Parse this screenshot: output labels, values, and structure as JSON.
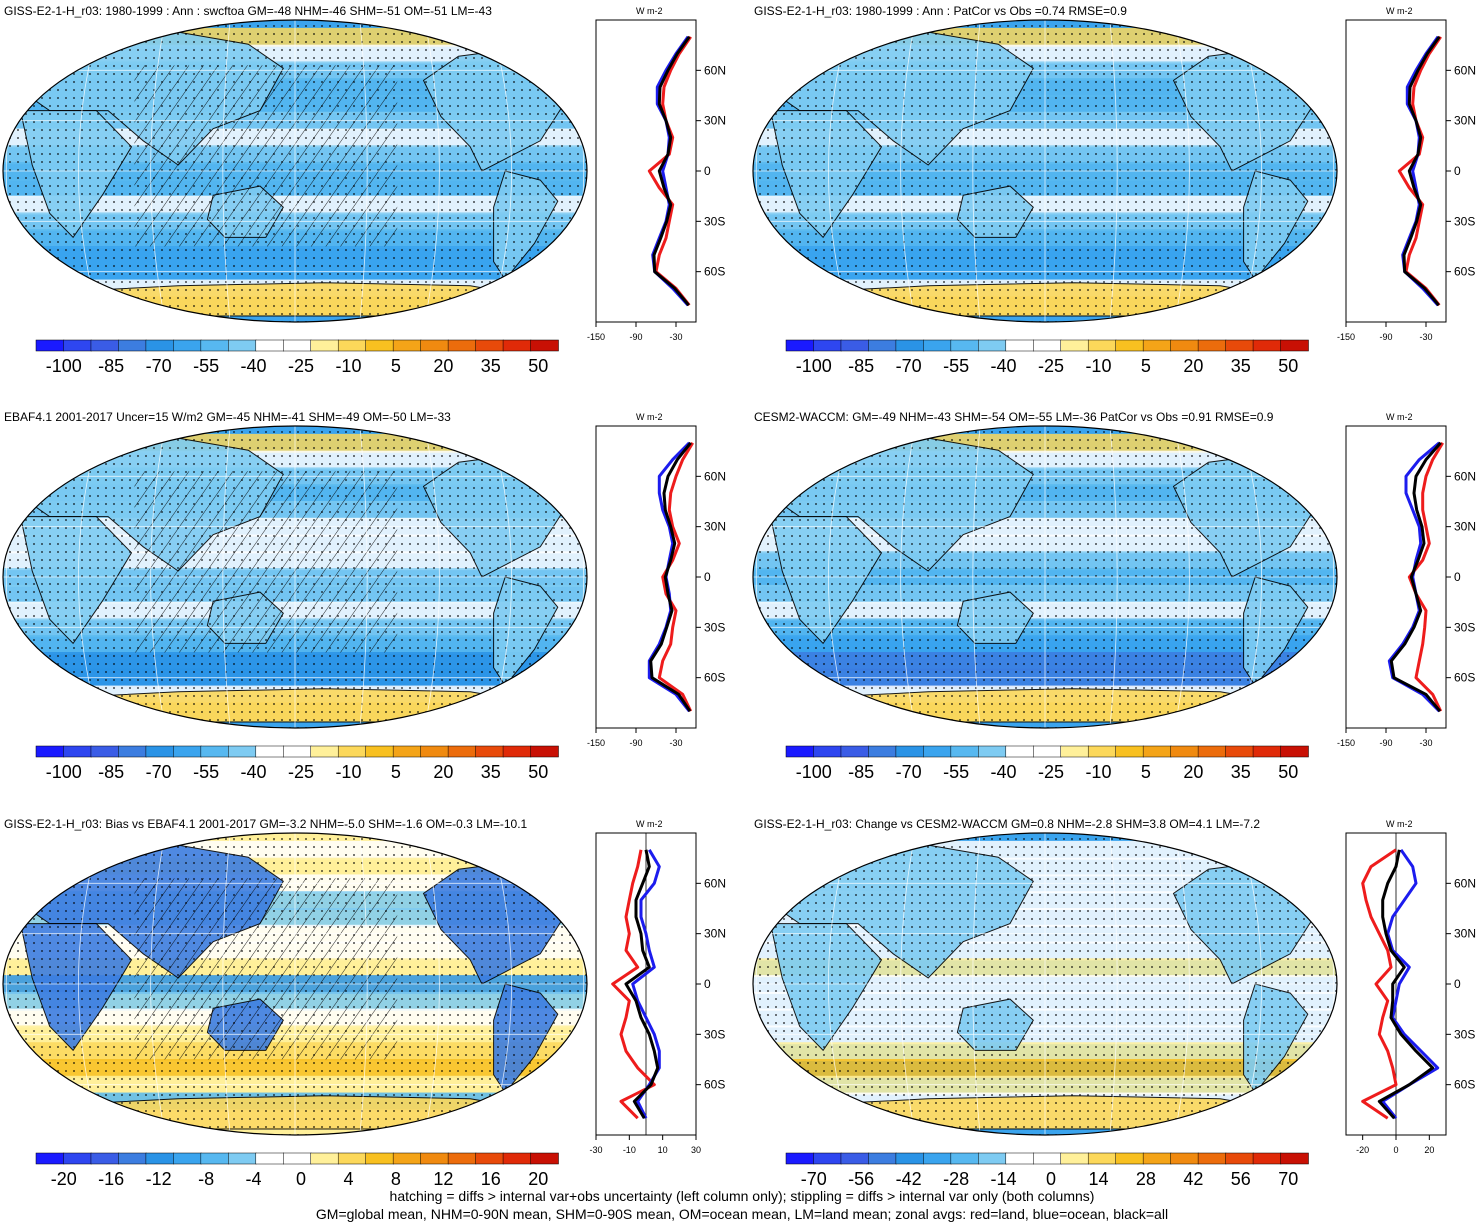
{
  "footer": {
    "line1": "hatching = diffs > internal var+obs uncertainty (left column only); stippling = diffs > internal var only (both columns)",
    "line2": "GM=global mean, NHM=0-90N mean, SHM=0-90S mean, OM=ocean mean, LM=land mean; zonal avgs: red=land, blue=ocean, black=all"
  },
  "chart_data": [
    {
      "type": "heatmap",
      "title": "GISS-E2-1-H_r03: 1980-1999 : Ann : swcftoa GM=-48 NHM=-46 SHM=-51 OM=-51 LM=-43",
      "colorbar_ticks": [
        "-100",
        "-85",
        "-70",
        "-55",
        "-40",
        "-25",
        "-10",
        "5",
        "20",
        "35",
        "50"
      ],
      "colorbar_range": [
        -105,
        55
      ],
      "hatching": true,
      "zonal_unit": "W m-2",
      "zonal_xticks": [
        "-150",
        "-90",
        "-30"
      ],
      "zonal_xrange": [
        -150,
        0
      ],
      "lat_ticks": [
        "60N",
        "30N",
        "0",
        "30S",
        "60S"
      ],
      "zonal": {
        "lat": [
          80,
          70,
          60,
          50,
          40,
          30,
          20,
          10,
          0,
          -10,
          -20,
          -30,
          -40,
          -50,
          -60,
          -70,
          -80
        ],
        "land": [
          -8,
          -25,
          -38,
          -48,
          -50,
          -45,
          -35,
          -40,
          -70,
          -55,
          -35,
          -40,
          -45,
          -55,
          -60,
          -30,
          -10
        ],
        "ocean": [
          -12,
          -30,
          -45,
          -58,
          -58,
          -45,
          -40,
          -42,
          -50,
          -45,
          -40,
          -45,
          -55,
          -65,
          -62,
          -35,
          -12
        ],
        "all": [
          -10,
          -28,
          -42,
          -54,
          -55,
          -45,
          -38,
          -42,
          -55,
          -48,
          -38,
          -44,
          -53,
          -63,
          -62,
          -32,
          -11
        ]
      }
    },
    {
      "type": "heatmap",
      "title": "GISS-E2-1-H_r03: 1980-1999 : Ann : PatCor vs Obs =0.74 RMSE=0.9",
      "colorbar_ticks": [
        "-100",
        "-85",
        "-70",
        "-55",
        "-40",
        "-25",
        "-10",
        "5",
        "20",
        "35",
        "50"
      ],
      "colorbar_range": [
        -105,
        55
      ],
      "hatching": false,
      "zonal_unit": "W m-2",
      "zonal_xticks": [
        "-150",
        "-90",
        "-30"
      ],
      "zonal_xrange": [
        -150,
        0
      ],
      "lat_ticks": [
        "60N",
        "30N",
        "0",
        "30S",
        "60S"
      ],
      "zonal": {
        "lat": [
          80,
          70,
          60,
          50,
          40,
          30,
          20,
          10,
          0,
          -10,
          -20,
          -30,
          -40,
          -50,
          -60,
          -70,
          -80
        ],
        "land": [
          -8,
          -25,
          -38,
          -48,
          -50,
          -45,
          -35,
          -40,
          -70,
          -55,
          -35,
          -40,
          -45,
          -55,
          -60,
          -30,
          -10
        ],
        "ocean": [
          -12,
          -30,
          -45,
          -58,
          -58,
          -45,
          -40,
          -42,
          -50,
          -45,
          -40,
          -45,
          -55,
          -65,
          -62,
          -35,
          -12
        ],
        "all": [
          -10,
          -28,
          -42,
          -54,
          -55,
          -45,
          -38,
          -42,
          -55,
          -48,
          -38,
          -44,
          -53,
          -63,
          -62,
          -32,
          -11
        ]
      }
    },
    {
      "type": "heatmap",
      "title": "EBAF4.1 2001-2017 Uncer=15 W/m2 GM=-45 NHM=-41 SHM=-49 OM=-50 LM=-33",
      "colorbar_ticks": [
        "-100",
        "-85",
        "-70",
        "-55",
        "-40",
        "-25",
        "-10",
        "5",
        "20",
        "35",
        "50"
      ],
      "colorbar_range": [
        -105,
        55
      ],
      "hatching": true,
      "zonal_unit": "W m-2",
      "zonal_xticks": [
        "-150",
        "-90",
        "-30"
      ],
      "zonal_xrange": [
        -150,
        0
      ],
      "lat_ticks": [
        "60N",
        "30N",
        "0",
        "30S",
        "60S"
      ],
      "zonal": {
        "lat": [
          80,
          70,
          60,
          50,
          40,
          30,
          20,
          10,
          0,
          -10,
          -20,
          -30,
          -40,
          -50,
          -60,
          -70,
          -80
        ],
        "land": [
          -5,
          -20,
          -30,
          -38,
          -40,
          -35,
          -25,
          -35,
          -50,
          -45,
          -30,
          -35,
          -38,
          -50,
          -55,
          -20,
          -8
        ],
        "ocean": [
          -10,
          -35,
          -55,
          -55,
          -50,
          -40,
          -35,
          -40,
          -45,
          -40,
          -38,
          -45,
          -55,
          -70,
          -70,
          -30,
          -10
        ],
        "all": [
          -8,
          -28,
          -42,
          -48,
          -46,
          -38,
          -32,
          -38,
          -46,
          -42,
          -36,
          -44,
          -52,
          -68,
          -66,
          -26,
          -9
        ]
      }
    },
    {
      "type": "heatmap",
      "title": "CESM2-WACCM: GM=-49 NHM=-43 SHM=-54 OM=-55 LM=-36 PatCor vs Obs =0.91 RMSE=0.9",
      "colorbar_ticks": [
        "-100",
        "-85",
        "-70",
        "-55",
        "-40",
        "-25",
        "-10",
        "5",
        "20",
        "35",
        "50"
      ],
      "colorbar_range": [
        -105,
        55
      ],
      "hatching": false,
      "zonal_unit": "W m-2",
      "zonal_xticks": [
        "-150",
        "-90",
        "-30"
      ],
      "zonal_xrange": [
        -150,
        0
      ],
      "lat_ticks": [
        "60N",
        "30N",
        "0",
        "30S",
        "60S"
      ],
      "zonal": {
        "lat": [
          80,
          70,
          60,
          50,
          40,
          30,
          20,
          10,
          0,
          -10,
          -20,
          -30,
          -40,
          -50,
          -60,
          -70,
          -80
        ],
        "land": [
          -5,
          -20,
          -30,
          -35,
          -35,
          -30,
          -25,
          -35,
          -55,
          -45,
          -30,
          -32,
          -35,
          -40,
          -45,
          -20,
          -8
        ],
        "ocean": [
          -10,
          -40,
          -60,
          -60,
          -50,
          -40,
          -38,
          -45,
          -50,
          -45,
          -40,
          -50,
          -65,
          -85,
          -80,
          -35,
          -10
        ],
        "all": [
          -8,
          -30,
          -45,
          -48,
          -44,
          -36,
          -33,
          -42,
          -52,
          -45,
          -38,
          -48,
          -62,
          -82,
          -78,
          -30,
          -9
        ]
      }
    },
    {
      "type": "heatmap",
      "title": "GISS-E2-1-H_r03: Bias vs EBAF4.1 2001-2017 GM=-3.2 NHM=-5.0 SHM=-1.6 OM=-0.3 LM=-10.1",
      "colorbar_ticks": [
        "-20",
        "-16",
        "-12",
        "-8",
        "-4",
        "0",
        "4",
        "8",
        "12",
        "16",
        "20"
      ],
      "colorbar_range": [
        -22,
        22
      ],
      "hatching": true,
      "zonal_unit": "W m-2",
      "zonal_xticks": [
        "-30",
        "-10",
        "10",
        "30"
      ],
      "zonal_xrange": [
        -30,
        30
      ],
      "lat_ticks": [
        "60N",
        "30N",
        "0",
        "30S",
        "60S"
      ],
      "zonal": {
        "lat": [
          80,
          70,
          60,
          50,
          40,
          30,
          20,
          10,
          0,
          -10,
          -20,
          -30,
          -40,
          -50,
          -60,
          -70,
          -80
        ],
        "land": [
          -3,
          -5,
          -8,
          -10,
          -12,
          -10,
          -12,
          -5,
          -20,
          -10,
          -12,
          -15,
          -12,
          -5,
          5,
          -15,
          -5
        ],
        "ocean": [
          2,
          8,
          5,
          -3,
          -3,
          0,
          2,
          5,
          -8,
          -5,
          0,
          5,
          8,
          8,
          2,
          -5,
          0
        ],
        "all": [
          0,
          2,
          -2,
          -6,
          -6,
          -3,
          -2,
          2,
          -12,
          -6,
          -3,
          2,
          5,
          7,
          3,
          -7,
          -1
        ]
      }
    },
    {
      "type": "heatmap",
      "title": "GISS-E2-1-H_r03: Change vs CESM2-WACCM GM=0.8 NHM=-2.8 SHM=3.8 OM=4.1 LM=-7.2",
      "colorbar_ticks": [
        "-70",
        "-56",
        "-42",
        "-28",
        "-14",
        "0",
        "14",
        "28",
        "42",
        "56",
        "70"
      ],
      "colorbar_range": [
        -77,
        77
      ],
      "hatching": false,
      "zonal_unit": "W m-2",
      "zonal_xticks": [
        "-20",
        "0",
        "20"
      ],
      "zonal_xrange": [
        -30,
        30
      ],
      "lat_ticks": [
        "60N",
        "30N",
        "0",
        "30S",
        "60S"
      ],
      "zonal": {
        "lat": [
          80,
          70,
          60,
          50,
          40,
          30,
          20,
          10,
          0,
          -10,
          -20,
          -30,
          -40,
          -50,
          -60,
          -70,
          -80
        ],
        "land": [
          0,
          -15,
          -20,
          -18,
          -15,
          -10,
          -5,
          -3,
          -12,
          -5,
          -8,
          -10,
          -5,
          -2,
          0,
          -20,
          -5
        ],
        "ocean": [
          3,
          10,
          12,
          5,
          -2,
          -5,
          -2,
          8,
          2,
          0,
          -2,
          5,
          15,
          25,
          8,
          -8,
          0
        ],
        "all": [
          2,
          0,
          -5,
          -8,
          -8,
          -6,
          -3,
          5,
          -2,
          -2,
          -3,
          3,
          12,
          22,
          8,
          -10,
          -1
        ]
      }
    }
  ]
}
